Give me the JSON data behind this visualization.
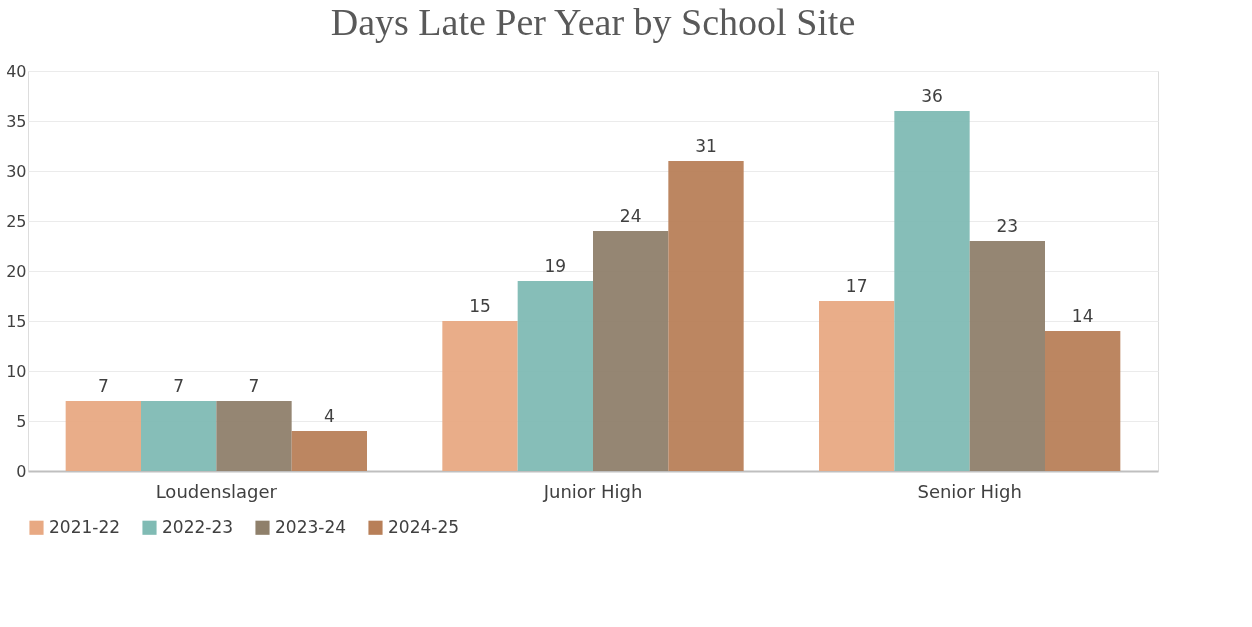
{
  "chart_data": {
    "type": "bar",
    "title": "Days Late Per Year by School Site",
    "categories": [
      "Loudenslager",
      "Junior High",
      "Senior High"
    ],
    "series": [
      {
        "name": "2021-22",
        "color": "#e8a983",
        "values": [
          7,
          15,
          17
        ]
      },
      {
        "name": "2022-23",
        "color": "#80bbb4",
        "values": [
          7,
          19,
          36
        ]
      },
      {
        "name": "2023-24",
        "color": "#8f806b",
        "values": [
          7,
          24,
          23
        ]
      },
      {
        "name": "2024-25",
        "color": "#b87f58",
        "values": [
          4,
          31,
          14
        ]
      }
    ],
    "ylim": [
      0,
      40
    ],
    "yticks": [
      0,
      5,
      10,
      15,
      20,
      25,
      30,
      35,
      40
    ],
    "grid": "y",
    "legend": "bottom",
    "data_labels": true
  }
}
